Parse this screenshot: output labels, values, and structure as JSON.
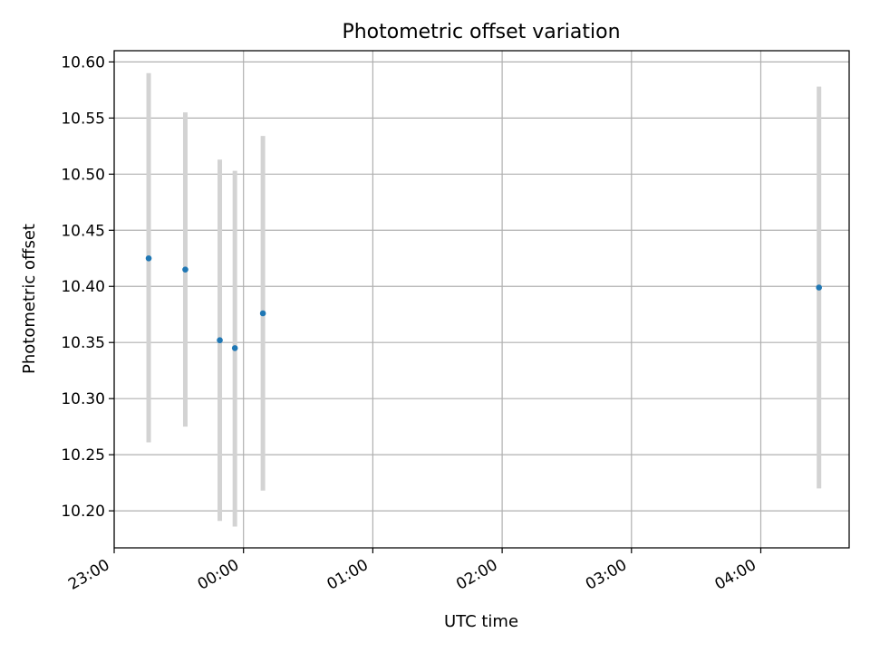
{
  "chart_data": {
    "type": "scatter",
    "title": "Photometric offset variation",
    "xlabel": "UTC time",
    "ylabel": "Photometric offset",
    "grid": true,
    "x_ticks": [
      "23:00",
      "00:00",
      "01:00",
      "02:00",
      "03:00",
      "04:00"
    ],
    "x_tick_minutes": [
      0,
      60,
      120,
      180,
      240,
      300
    ],
    "xlim_minutes": [
      0,
      341
    ],
    "y_ticks": [
      "10.20",
      "10.25",
      "10.30",
      "10.35",
      "10.40",
      "10.45",
      "10.50",
      "10.55",
      "10.60"
    ],
    "ylim": [
      10.167,
      10.61
    ],
    "series": [
      {
        "points": [
          {
            "time": "23:16",
            "y": 10.425,
            "yerr_low": 10.261,
            "yerr_high": 10.59
          },
          {
            "time": "23:33",
            "y": 10.415,
            "yerr_low": 10.275,
            "yerr_high": 10.555
          },
          {
            "time": "23:49",
            "y": 10.352,
            "yerr_low": 10.191,
            "yerr_high": 10.513
          },
          {
            "time": "23:56",
            "y": 10.345,
            "yerr_low": 10.186,
            "yerr_high": 10.503
          },
          {
            "time": "00:09",
            "y": 10.376,
            "yerr_low": 10.218,
            "yerr_high": 10.534
          },
          {
            "time": "04:27",
            "y": 10.399,
            "yerr_low": 10.22,
            "yerr_high": 10.578
          }
        ]
      }
    ],
    "marker_color": "#1f77b4",
    "errorbar_color": "#d3d3d3",
    "grid_color": "#b0b0b0"
  }
}
